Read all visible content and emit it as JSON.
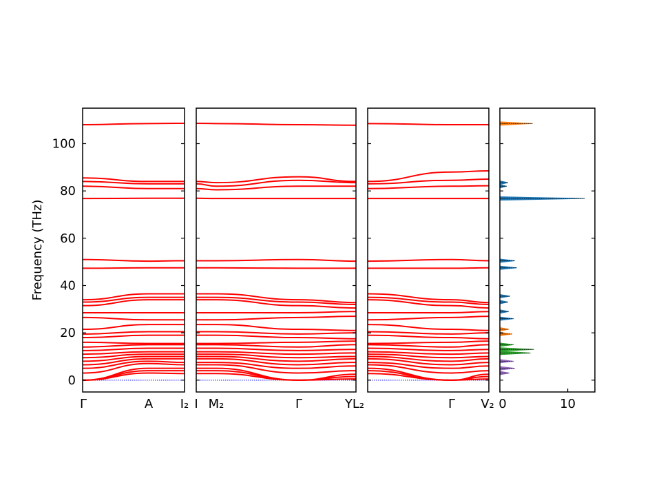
{
  "chart_data": {
    "type": "line",
    "ylabel": "Frequency (THz)",
    "ylim": [
      -5,
      115
    ],
    "yticks": [
      0,
      20,
      40,
      60,
      80,
      100
    ],
    "colors": {
      "bands": "#ff0000",
      "zero_line": "#0000ff",
      "dos_fill": "#1f77b4",
      "dos_orange": "#ff7f0e",
      "dos_green": "#2ca02c",
      "dos_purple": "#9467bd",
      "dos_total": "#000000"
    },
    "panels": [
      {
        "segments": [
          {
            "x": [
              0,
              1
            ],
            "labels": [
              "Γ",
              "A"
            ]
          },
          {
            "x": [
              1,
              1.45
            ],
            "labels": [
              "A",
              "I₂"
            ]
          }
        ],
        "tick_labels": [
          "Γ",
          "A",
          "I₂"
        ],
        "bands": [
          [
            108,
            108.5,
            108.6
          ],
          [
            85.5,
            84,
            84
          ],
          [
            84,
            83,
            83
          ],
          [
            82,
            81,
            81
          ],
          [
            76.8,
            76.9,
            76.9
          ],
          [
            51,
            50.3,
            50.5
          ],
          [
            47.3,
            47.5,
            47.5
          ],
          [
            34,
            36.5,
            36.5
          ],
          [
            33,
            35,
            35
          ],
          [
            31.5,
            34,
            34
          ],
          [
            28.5,
            28.5,
            28.5
          ],
          [
            26.5,
            25.5,
            25.5
          ],
          [
            21.5,
            23.5,
            23.5
          ],
          [
            19.5,
            20.5,
            20.5
          ],
          [
            18,
            19,
            19
          ],
          [
            16,
            15.5,
            15.5
          ],
          [
            14,
            15,
            15
          ],
          [
            12.5,
            13.5,
            13.5
          ],
          [
            11,
            12,
            12
          ],
          [
            9.5,
            11,
            11
          ],
          [
            8,
            10,
            10
          ],
          [
            6.5,
            9,
            9
          ],
          [
            5,
            8,
            7.5
          ],
          [
            3,
            7,
            6.5
          ],
          [
            0,
            5,
            5
          ],
          [
            0,
            4,
            4
          ],
          [
            0,
            3,
            2.8
          ]
        ]
      },
      {
        "tick_labels": [
          "I",
          "M₂",
          "Γ"
        ],
        "x_ticks": [
          0,
          0.1,
          1
        ],
        "bands": [
          [
            108.6,
            108.5,
            108,
            107.8
          ],
          [
            84,
            83.5,
            86,
            84
          ],
          [
            83,
            82,
            84.5,
            83.5
          ],
          [
            81,
            80.5,
            82,
            82
          ],
          [
            76.9,
            76.8,
            76.8,
            76.8
          ],
          [
            50.5,
            50.5,
            51,
            50.3
          ],
          [
            47.5,
            47.5,
            47.3,
            47.3
          ],
          [
            36.5,
            36.5,
            34,
            32.8
          ],
          [
            35,
            35,
            33,
            32
          ],
          [
            34,
            34,
            31.5,
            30.5
          ],
          [
            28.5,
            28.5,
            28.5,
            29
          ],
          [
            25.5,
            25.5,
            26.5,
            27
          ],
          [
            23.5,
            23.5,
            21.5,
            21
          ],
          [
            20.5,
            20.5,
            19.5,
            20
          ],
          [
            19,
            19,
            18,
            17.5
          ],
          [
            15.5,
            15.5,
            16,
            16.5
          ],
          [
            15,
            15,
            14,
            15
          ],
          [
            13.5,
            13.5,
            12.5,
            13
          ],
          [
            12,
            12,
            11,
            11.5
          ],
          [
            11,
            11,
            9.5,
            10
          ],
          [
            10,
            10,
            8,
            9
          ],
          [
            9,
            9,
            6.5,
            7.5
          ],
          [
            7.5,
            7.5,
            5,
            6
          ],
          [
            6.5,
            6.5,
            3,
            4
          ],
          [
            5,
            5,
            0,
            2.5
          ],
          [
            4,
            4,
            0,
            1.5
          ],
          [
            2.8,
            2.8,
            0,
            0.5
          ]
        ]
      },
      {
        "tick_labels": [
          "L₂",
          "Γ",
          "V₂"
        ],
        "bands": [
          [
            108.5,
            108,
            108
          ],
          [
            84,
            88,
            88.5
          ],
          [
            83,
            84.5,
            85
          ],
          [
            81,
            82,
            82.2
          ],
          [
            76.8,
            76.8,
            76.8
          ],
          [
            50.3,
            51,
            50.5
          ],
          [
            47.3,
            47.3,
            47.5
          ],
          [
            36.5,
            34,
            32.8
          ],
          [
            35,
            33,
            32
          ],
          [
            34,
            31.5,
            30.5
          ],
          [
            28.5,
            28.5,
            29
          ],
          [
            25.5,
            26.5,
            27
          ],
          [
            23.5,
            21.5,
            21
          ],
          [
            20.5,
            19.5,
            20
          ],
          [
            19,
            18,
            17.5
          ],
          [
            15.5,
            16,
            16.5
          ],
          [
            15,
            14,
            15
          ],
          [
            13.5,
            12.5,
            13
          ],
          [
            12,
            11,
            11.5
          ],
          [
            11,
            9.5,
            10
          ],
          [
            10,
            8,
            9
          ],
          [
            9,
            6.5,
            7.5
          ],
          [
            7.5,
            5,
            6
          ],
          [
            6.5,
            3,
            4
          ],
          [
            5,
            0,
            2.5
          ],
          [
            4,
            0,
            1.5
          ],
          [
            2.8,
            0,
            0.5
          ]
        ]
      }
    ],
    "dos": {
      "xlim": [
        0,
        14
      ],
      "xticks": [
        0,
        10
      ],
      "tick_labels": [
        "0",
        "10"
      ],
      "peaks": [
        {
          "f": 108.5,
          "h": 4.8,
          "series": "orange"
        },
        {
          "f": 83.5,
          "h": 1.2,
          "series": "blue"
        },
        {
          "f": 82,
          "h": 1.0,
          "series": "blue"
        },
        {
          "f": 76.8,
          "h": 12.5,
          "series": "blue"
        },
        {
          "f": 50.5,
          "h": 2.2,
          "series": "blue"
        },
        {
          "f": 47.5,
          "h": 2.5,
          "series": "blue"
        },
        {
          "f": 35.5,
          "h": 1.5,
          "series": "blue"
        },
        {
          "f": 33,
          "h": 1.2,
          "series": "blue"
        },
        {
          "f": 29,
          "h": 1.3,
          "series": "blue"
        },
        {
          "f": 26,
          "h": 2.0,
          "series": "blue"
        },
        {
          "f": 21.5,
          "h": 1.3,
          "series": "orange"
        },
        {
          "f": 19.5,
          "h": 1.8,
          "series": "orange"
        },
        {
          "f": 15,
          "h": 2.0,
          "series": "green"
        },
        {
          "f": 13,
          "h": 5.0,
          "series": "green"
        },
        {
          "f": 11.5,
          "h": 4.5,
          "series": "green"
        },
        {
          "f": 8,
          "h": 2.0,
          "series": "purple"
        },
        {
          "f": 5,
          "h": 2.2,
          "series": "purple"
        },
        {
          "f": 3,
          "h": 1.4,
          "series": "purple"
        }
      ]
    }
  }
}
